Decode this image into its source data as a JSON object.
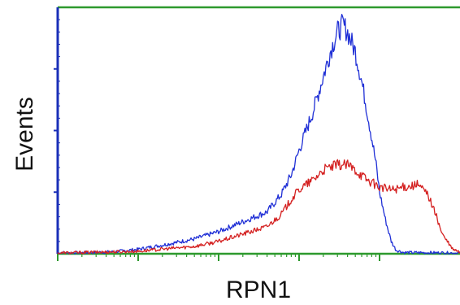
{
  "chart_data": {
    "type": "line",
    "title": "",
    "xlabel": "RPN1",
    "ylabel": "Events",
    "x_scale": "log",
    "xlim": [
      1,
      100000
    ],
    "ylim": [
      0,
      100
    ],
    "grid": false,
    "legend": "none",
    "series": [
      {
        "color": "#1f2fd6",
        "points": [
          [
            1.0,
            0.5
          ],
          [
            2.0,
            0.4
          ],
          [
            5.0,
            0.8
          ],
          [
            10.0,
            1.8
          ],
          [
            20.0,
            3.5
          ],
          [
            50.0,
            6.0
          ],
          [
            100.0,
            9.0
          ],
          [
            200.0,
            13.0
          ],
          [
            400.0,
            17.0
          ],
          [
            600.0,
            24.0
          ],
          [
            800.0,
            32.0
          ],
          [
            1000.0,
            42.0
          ],
          [
            1500.0,
            58.0
          ],
          [
            2000.0,
            72.0
          ],
          [
            2500.0,
            83.0
          ],
          [
            3000.0,
            90.0
          ],
          [
            3500.0,
            93.0
          ],
          [
            4000.0,
            90.0
          ],
          [
            5000.0,
            82.0
          ],
          [
            6000.0,
            70.0
          ],
          [
            7000.0,
            58.0
          ],
          [
            8000.0,
            47.0
          ],
          [
            9000.0,
            37.0
          ],
          [
            10000.0,
            25.0
          ],
          [
            12000.0,
            13.0
          ],
          [
            14000.0,
            5.0
          ],
          [
            16000.0,
            1.5
          ],
          [
            20000.0,
            0.5
          ],
          [
            50000.0,
            0.4
          ],
          [
            100000.0,
            0.3
          ]
        ]
      },
      {
        "color": "#d42020",
        "points": [
          [
            1.0,
            0.3
          ],
          [
            10.0,
            1.0
          ],
          [
            50.0,
            3.0
          ],
          [
            100.0,
            5.0
          ],
          [
            200.0,
            8.0
          ],
          [
            400.0,
            11.0
          ],
          [
            600.0,
            16.0
          ],
          [
            800.0,
            22.0
          ],
          [
            1000.0,
            26.0
          ],
          [
            1500.0,
            30.0
          ],
          [
            2000.0,
            34.0
          ],
          [
            3000.0,
            36.0
          ],
          [
            4000.0,
            36.0
          ],
          [
            5000.0,
            34.0
          ],
          [
            7000.0,
            30.0
          ],
          [
            10000.0,
            27.0
          ],
          [
            14000.0,
            26.0
          ],
          [
            20000.0,
            27.0
          ],
          [
            30000.0,
            28.0
          ],
          [
            40000.0,
            24.0
          ],
          [
            50000.0,
            16.0
          ],
          [
            60000.0,
            8.0
          ],
          [
            80000.0,
            2.0
          ],
          [
            100000.0,
            0.5
          ]
        ]
      }
    ]
  }
}
